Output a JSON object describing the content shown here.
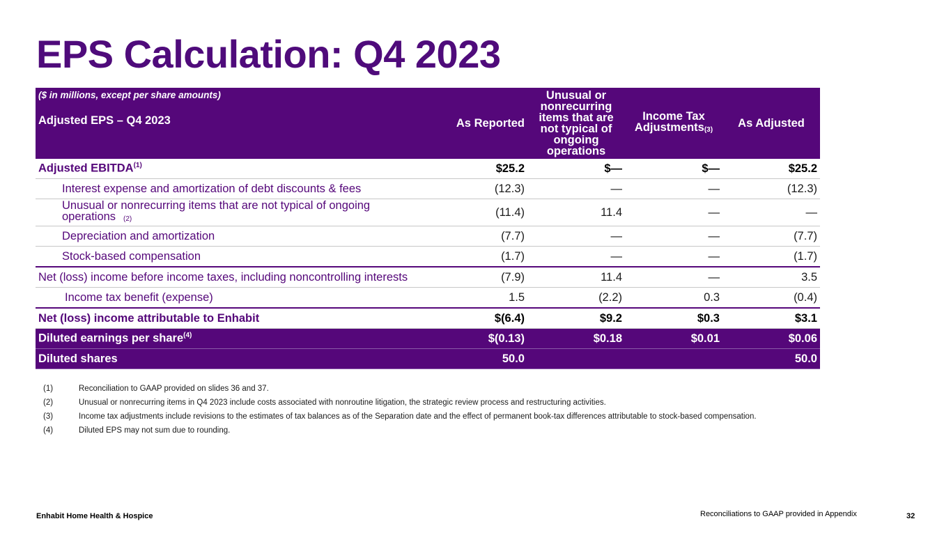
{
  "title": "EPS Calculation: Q4 2023",
  "table": {
    "units_note": "($ in millions, except per share amounts)",
    "subtitle": "Adjusted EPS – Q4 2023",
    "columns": {
      "as_reported": "As Reported",
      "unusual": "Unusual or nonrecurring items that are not typical of ongoing operations",
      "income_tax": "Income Tax Adjustments",
      "income_tax_sup": "(3)",
      "as_adjusted": "As Adjusted"
    },
    "rows": {
      "adjusted_ebitda": {
        "label": "Adjusted EBITDA",
        "sup": "(1)",
        "values": [
          "$25.2",
          "$—",
          "$—",
          "$25.2"
        ]
      },
      "interest": {
        "label": "Interest expense and amortization of debt discounts & fees",
        "values": [
          "(12.3)",
          "—",
          "—",
          "(12.3)"
        ]
      },
      "unusual": {
        "label": "Unusual or nonrecurring items that are not typical of ongoing operations",
        "sup": "(2)",
        "values": [
          "(11.4)",
          "11.4",
          "—",
          "—"
        ]
      },
      "depreciation": {
        "label": "Depreciation and amortization",
        "values": [
          "(7.7)",
          "—",
          "—",
          "(7.7)"
        ]
      },
      "stock_comp": {
        "label": "Stock-based compensation",
        "values": [
          "(1.7)",
          "—",
          "—",
          "(1.7)"
        ]
      },
      "pretax": {
        "label": "Net (loss) income before income taxes, including noncontrolling interests",
        "values": [
          "(7.9)",
          "11.4",
          "—",
          "3.5"
        ]
      },
      "tax": {
        "label": "Income tax benefit (expense)",
        "values": [
          "1.5",
          "(2.2)",
          "0.3",
          "(0.4)"
        ]
      },
      "net": {
        "label": "Net (loss) income attributable to Enhabit",
        "values": [
          "$(6.4)",
          "$9.2",
          "$0.3",
          "$3.1"
        ]
      },
      "diluted_eps": {
        "label": "Diluted earnings per share",
        "sup": "(4)",
        "values": [
          "$(0.13)",
          "$0.18",
          "$0.01",
          "$0.06"
        ]
      },
      "diluted_shares": {
        "label": "Diluted shares",
        "values": [
          "50.0",
          "",
          "",
          "50.0"
        ]
      }
    }
  },
  "footnotes": [
    {
      "num": "(1)",
      "text": "Reconciliation to GAAP provided on slides 36 and 37."
    },
    {
      "num": "(2)",
      "text": "Unusual or nonrecurring items in Q4 2023 include costs associated with nonroutine litigation, the strategic review process and restructuring activities."
    },
    {
      "num": "(3)",
      "text": "Income tax adjustments include revisions to the estimates of tax balances as of the Separation date and the effect of permanent book-tax differences attributable to stock-based compensation."
    },
    {
      "num": "(4)",
      "text": "Diluted EPS may not sum due to rounding."
    }
  ],
  "footer": {
    "company": "Enhabit Home Health & Hospice",
    "note": "Reconciliations to GAAP provided in Appendix",
    "page": "32"
  },
  "colors": {
    "brand_purple": "#55077a",
    "title_purple": "#4f0b7b"
  }
}
